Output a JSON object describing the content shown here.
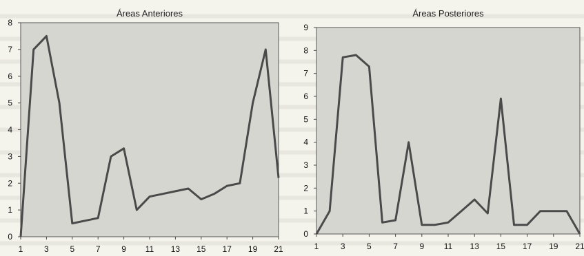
{
  "chart_data": [
    {
      "type": "line",
      "title": "Áreas Anteriores",
      "xlabel": "",
      "ylabel": "",
      "x": [
        1,
        2,
        3,
        4,
        5,
        6,
        7,
        8,
        9,
        10,
        11,
        12,
        13,
        14,
        15,
        16,
        17,
        18,
        19,
        20,
        21
      ],
      "x_tick_labels": [
        "1",
        "3",
        "5",
        "7",
        "9",
        "11",
        "13",
        "15",
        "17",
        "19",
        "21"
      ],
      "y_tick_labels": [
        "0",
        "1",
        "2",
        "3",
        "4",
        "5",
        "6",
        "7",
        "8"
      ],
      "ylim": [
        0,
        8
      ],
      "grid": false,
      "series": [
        {
          "name": "",
          "values": [
            0,
            7.0,
            7.5,
            5.0,
            0.5,
            0.6,
            0.7,
            3.0,
            3.3,
            1.0,
            1.5,
            1.6,
            1.7,
            1.8,
            1.4,
            1.6,
            1.9,
            2.0,
            5.0,
            7.0,
            2.2
          ]
        }
      ],
      "line_color": "#4a4a4a"
    },
    {
      "type": "line",
      "title": "Áreas Posteriores",
      "xlabel": "",
      "ylabel": "",
      "x": [
        1,
        2,
        3,
        4,
        5,
        6,
        7,
        8,
        9,
        10,
        11,
        12,
        13,
        14,
        15,
        16,
        17,
        18,
        19,
        20,
        21
      ],
      "x_tick_labels": [
        "1",
        "3",
        "5",
        "7",
        "9",
        "11",
        "13",
        "15",
        "17",
        "19",
        "21"
      ],
      "y_tick_labels": [
        "0",
        "1",
        "2",
        "3",
        "4",
        "5",
        "6",
        "7",
        "8",
        "9"
      ],
      "ylim": [
        0,
        9
      ],
      "grid": false,
      "series": [
        {
          "name": "",
          "values": [
            0,
            1.0,
            7.7,
            7.8,
            7.3,
            0.5,
            0.6,
            4.0,
            0.4,
            0.4,
            0.5,
            1.0,
            1.5,
            0.9,
            5.9,
            0.4,
            0.4,
            1.0,
            1.0,
            1.0,
            0.0
          ]
        }
      ],
      "line_color": "#4a4a4a"
    }
  ]
}
